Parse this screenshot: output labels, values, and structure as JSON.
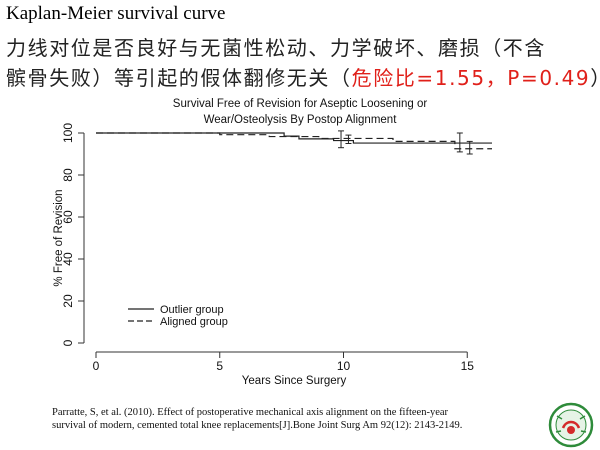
{
  "slide": {
    "title": "Kaplan-Meier survival curve",
    "line1": "力线对位是否良好与无菌性松动、力学破坏、磨损（不含",
    "line2_black": "髌骨失败）等引起的假体翻修无关（",
    "line2_red": "危险比=1.55，P=0.49",
    "line2_end": "）"
  },
  "citation": {
    "line1": "Parratte, S, et al. (2010). Effect of postoperative mechanical axis alignment on the fifteen-year",
    "line2": "survival of modern, cemented total knee replacements[J].Bone Joint Surg Am 92(12): 2143-2149."
  },
  "colors": {
    "accent_red": "#e0201a",
    "logo_green": "#2e8b3a",
    "logo_red": "#d42a2a"
  },
  "chart_data": {
    "type": "line",
    "title": "Survival Free of Revision for Aseptic Loosening or\nWear/Osteolysis By Postop Alignment",
    "title_line1": "Survival Free of Revision for Aseptic Loosening or",
    "title_line2": "Wear/Osteolysis By Postop Alignment",
    "xlabel": "Years Since Surgery",
    "ylabel": "% Free of Revision",
    "xlim": [
      0,
      16
    ],
    "ylim": [
      0,
      100
    ],
    "xticks": [
      "0",
      "5",
      "10",
      "15"
    ],
    "yticks": [
      "0",
      "20",
      "40",
      "60",
      "80",
      "100"
    ],
    "legend_position": "bottom-left",
    "series": [
      {
        "name": "Outlier group",
        "style": "solid",
        "x": [
          0,
          7.6,
          7.6,
          8.2,
          8.2,
          9.6,
          9.6,
          10.4,
          10.4,
          16
        ],
        "y": [
          100,
          100,
          98.5,
          98.5,
          97.2,
          97.2,
          96.4,
          96.4,
          95.2,
          95.2
        ],
        "error_bars": [
          {
            "x": 9.9,
            "y": 97,
            "low": 93,
            "high": 101
          },
          {
            "x": 14.7,
            "y": 95,
            "low": 91,
            "high": 100
          }
        ]
      },
      {
        "name": "Aligned group",
        "style": "dashed",
        "x": [
          0,
          5,
          5,
          7,
          7,
          9,
          9,
          12,
          12,
          14.5,
          14.5,
          16
        ],
        "y": [
          100,
          100,
          99.2,
          99.2,
          98.3,
          98.3,
          97.4,
          97.4,
          96,
          96,
          92.5,
          92.5
        ],
        "error_bars": [
          {
            "x": 10.2,
            "y": 97,
            "low": 95,
            "high": 99
          },
          {
            "x": 15.1,
            "y": 93,
            "low": 90,
            "high": 96
          }
        ]
      }
    ]
  }
}
